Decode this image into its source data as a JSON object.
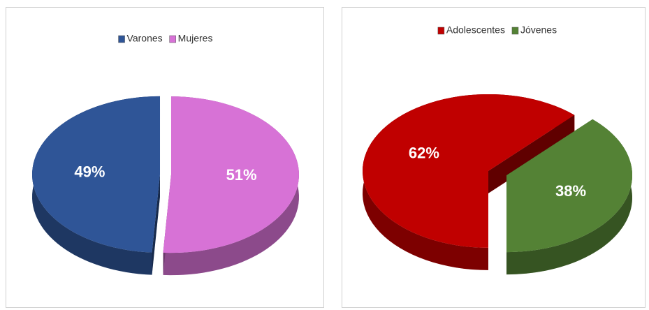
{
  "chart_data": [
    {
      "type": "pie",
      "categories": [
        "Varones",
        "Mujeres"
      ],
      "values": [
        49,
        51
      ],
      "value_labels": [
        "49%",
        "51%"
      ],
      "colors": [
        "#2f5597",
        "#d772d6"
      ],
      "legend": "top"
    },
    {
      "type": "pie",
      "categories": [
        "Adolescentes",
        "Jóvenes"
      ],
      "values": [
        62,
        38
      ],
      "value_labels": [
        "62%",
        "38%"
      ],
      "colors": [
        "#c00000",
        "#548235"
      ],
      "legend": "top"
    }
  ]
}
